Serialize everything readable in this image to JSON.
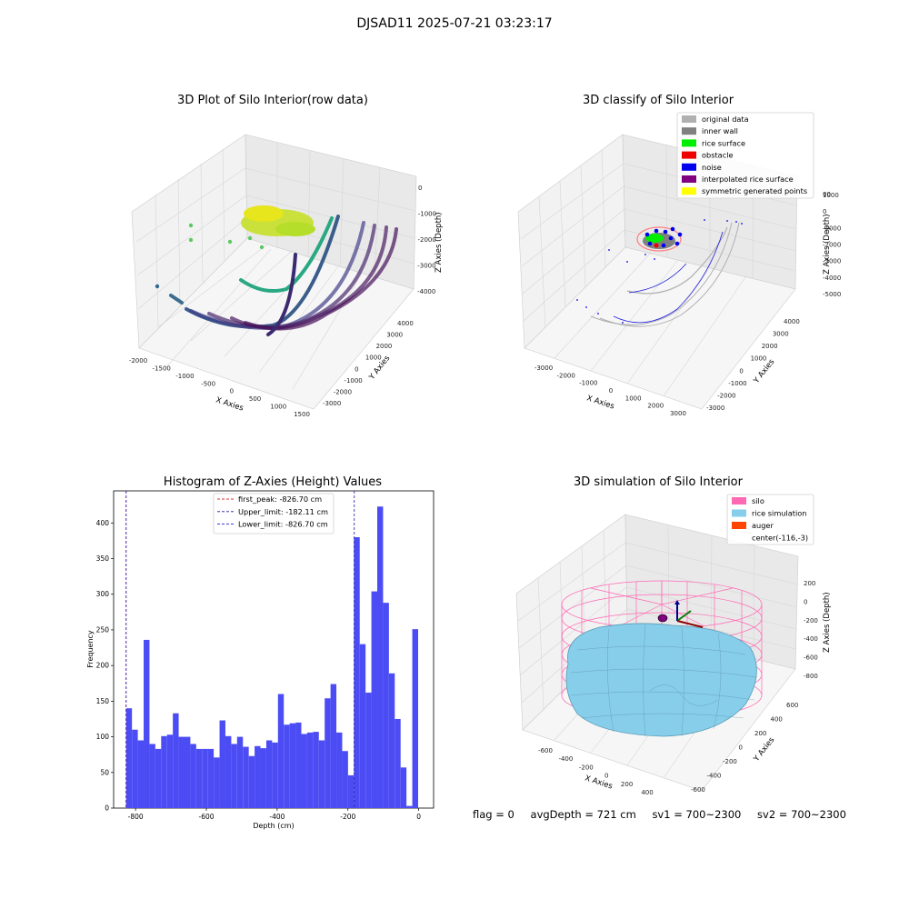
{
  "figure_title": "DJSAD11 2025-07-21 03:23:17",
  "status": {
    "flag": "flag = 0",
    "avg_depth": "avgDepth = 721 cm",
    "sv1": "sv1 = 700~2300",
    "sv2": "sv2 = 700~2300"
  },
  "colors": {
    "hist_bar": "#4c4cf5",
    "first_peak": "#e03030",
    "upper_limit": "#1a1aa0",
    "lower_limit": "#2020d0",
    "original_data": "#b0b0b0",
    "inner_wall": "#808080",
    "rice_surface": "#00ee00",
    "obstacle": "#ee0000",
    "noise": "#0000ee",
    "interpolated_rice_surface": "#800080",
    "symmetric_generated_points": "#ffff00",
    "silo": "#ff69b4",
    "rice_simulation": "#87ceeb",
    "auger": "#ff4500"
  },
  "chart_data": [
    {
      "type": "scatter",
      "subtype": "3d",
      "title": "3D Plot of Silo Interior(row data)",
      "xlabel": "X Axies",
      "ylabel": "Y Axies",
      "zlabel": "Z Axies (Depth)",
      "x_ticks": [
        "-2000",
        "-1500",
        "-1000",
        "-500",
        "0",
        "500",
        "1000",
        "1500"
      ],
      "y_ticks": [
        "-3000",
        "-2000",
        "-1000",
        "0",
        "1000",
        "2000",
        "3000",
        "4000"
      ],
      "z_ticks": [
        "0",
        "-1000",
        "-2000",
        "-3000",
        "-4000"
      ]
    },
    {
      "type": "scatter",
      "subtype": "3d",
      "title": "3D classify of Silo Interior",
      "xlabel": "X Axies",
      "ylabel": "Y Axies",
      "zlabel": "Z Axies (Depth)",
      "x_ticks": [
        "-3000",
        "-2000",
        "-1000",
        "0",
        "1000",
        "2000",
        "3000"
      ],
      "y_ticks": [
        "-3000",
        "-2000",
        "-1000",
        "0",
        "1000",
        "2000",
        "3000",
        "4000"
      ],
      "z_ticks": [
        "1000",
        "0",
        "-1000",
        "-2000",
        "-3000",
        "-4000",
        "-5000"
      ],
      "z_tick_partial": "00",
      "legend": [
        "original data",
        "inner wall",
        "rice surface",
        "obstacle",
        "noise",
        "interpolated rice surface",
        "symmetric generated points"
      ]
    },
    {
      "type": "bar",
      "subtype": "histogram",
      "title": "Histogram of Z-Axies (Height) Values",
      "xlabel": "Depth (cm)",
      "ylabel": "Frequency",
      "xlim": [
        -862,
        42
      ],
      "ylim": [
        0,
        445
      ],
      "x_ticks": [
        -800,
        -600,
        -400,
        -200,
        0
      ],
      "y_ticks": [
        0,
        50,
        100,
        150,
        200,
        250,
        300,
        350,
        400
      ],
      "bin_start": -826.7,
      "bin_width": 16.5,
      "values": [
        140,
        110,
        95,
        236,
        90,
        83,
        101,
        103,
        133,
        100,
        100,
        90,
        83,
        83,
        83,
        71,
        123,
        101,
        90,
        100,
        86,
        73,
        87,
        84,
        95,
        92,
        160,
        117,
        119,
        120,
        104,
        106,
        107,
        95,
        154,
        174,
        106,
        80,
        46,
        380,
        230,
        162,
        304,
        423,
        288,
        189,
        125,
        57,
        3,
        251
      ],
      "vlines": [
        {
          "label": "first_peak: -826.70 cm",
          "x": -826.7,
          "style": "dashed"
        },
        {
          "label": "Upper_limit: -182.11 cm",
          "x": -182.11,
          "style": "dashed"
        },
        {
          "label": "Lower_limit: -826.70 cm",
          "x": -826.7,
          "style": "dashed"
        }
      ],
      "legend_placement": "top-center"
    },
    {
      "type": "scatter",
      "subtype": "3d-surface",
      "title": "3D simulation of Silo Interior",
      "xlabel": "X Axies",
      "ylabel": "Y Axies",
      "zlabel": "Z Axies (Depth)",
      "x_ticks": [
        "-600",
        "-400",
        "-200",
        "0",
        "200",
        "400"
      ],
      "y_ticks": [
        "-600",
        "-400",
        "-200",
        "0",
        "200",
        "400",
        "600"
      ],
      "z_ticks": [
        "200",
        "0",
        "-200",
        "-400",
        "-600",
        "-800"
      ],
      "legend": [
        "silo",
        "rice simulation",
        "auger",
        "center(-116,-3)"
      ]
    }
  ]
}
